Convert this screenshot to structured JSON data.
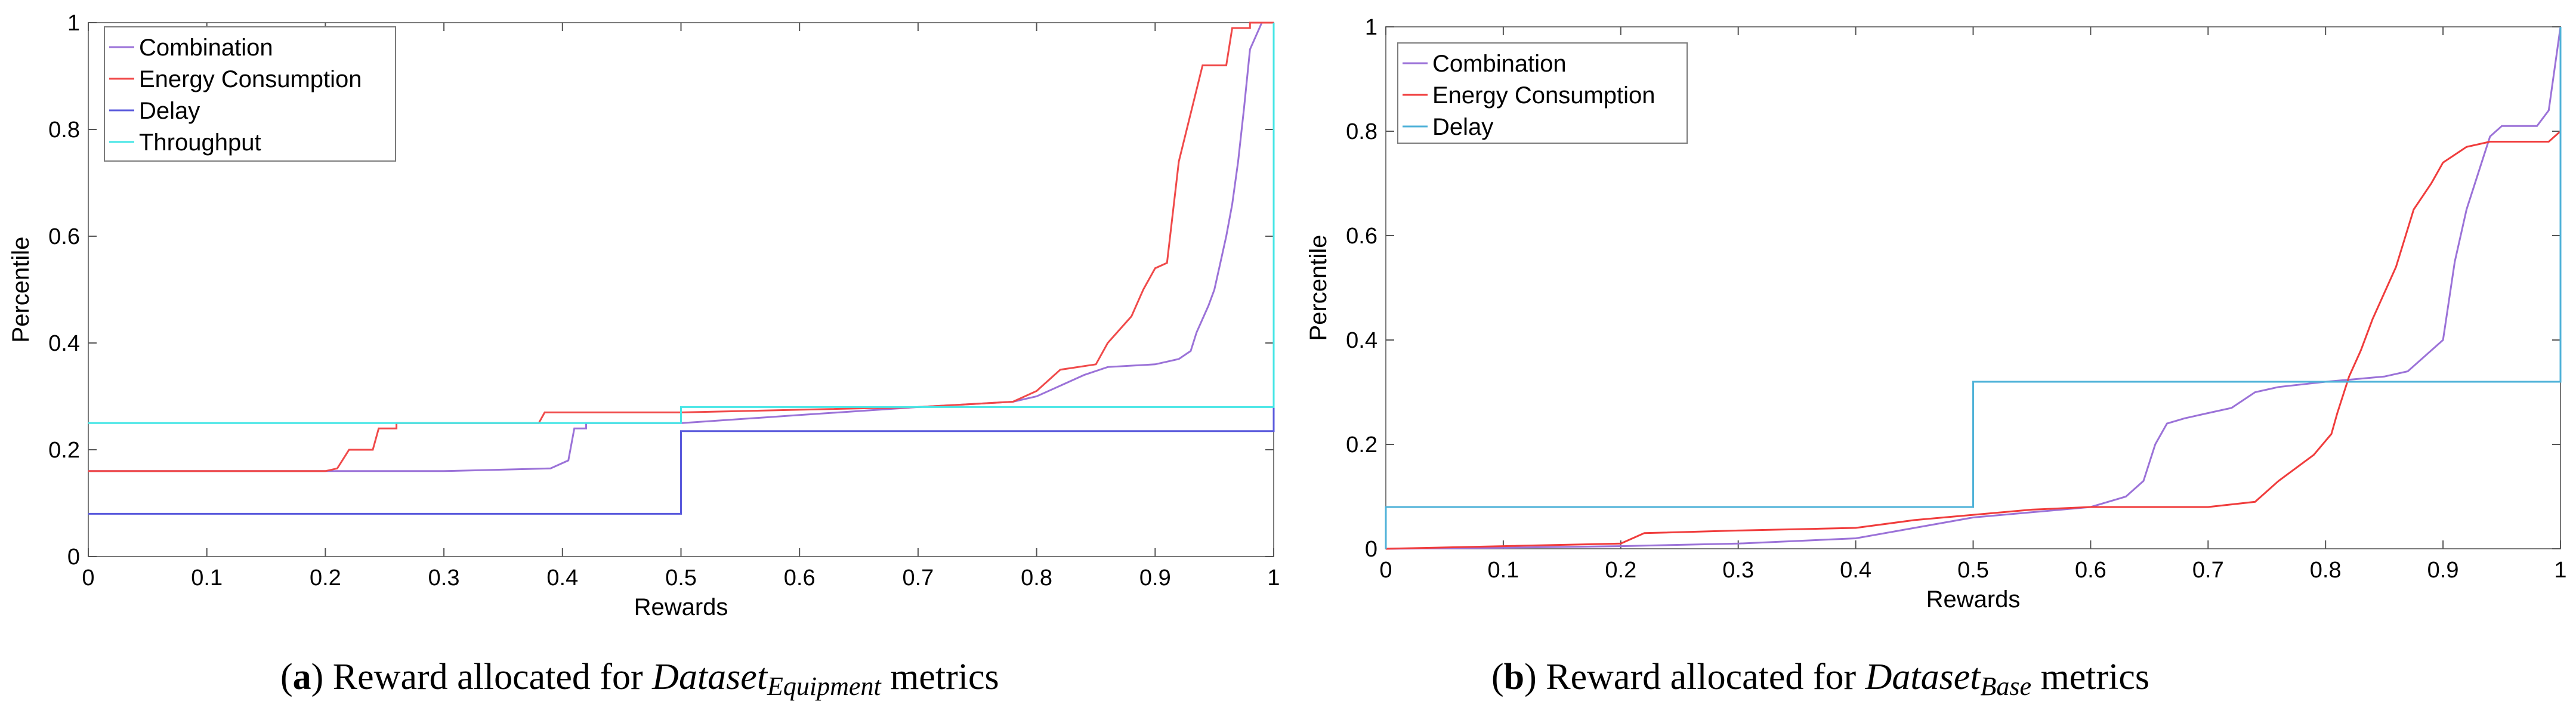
{
  "chart_data": [
    {
      "type": "line",
      "step": true,
      "xlabel": "Rewards",
      "ylabel": "Percentile",
      "xlim": [
        0,
        1
      ],
      "ylim": [
        0,
        1
      ],
      "xticks": [
        "0",
        "0.1",
        "0.2",
        "0.3",
        "0.4",
        "0.5",
        "0.6",
        "0.7",
        "0.8",
        "0.9",
        "1"
      ],
      "yticks": [
        "0",
        "0.2",
        "0.4",
        "0.6",
        "0.8",
        "1"
      ],
      "legend_position": "top-left",
      "caption": {
        "label": "(a)",
        "text": "Reward allocated for",
        "var": "Dataset",
        "sub": "Equipment",
        "suffix": "metrics"
      },
      "series": [
        {
          "name": "Combination",
          "color": "#9b72d8",
          "points": [
            [
              0,
              0.16
            ],
            [
              0.17,
              0.16
            ],
            [
              0.2,
              0.16
            ],
            [
              0.3,
              0.16
            ],
            [
              0.39,
              0.165
            ],
            [
              0.405,
              0.18
            ],
            [
              0.41,
              0.24
            ],
            [
              0.42,
              0.24
            ],
            [
              0.42,
              0.25
            ],
            [
              0.5,
              0.25
            ],
            [
              0.6,
              0.265
            ],
            [
              0.7,
              0.28
            ],
            [
              0.78,
              0.29
            ],
            [
              0.8,
              0.3
            ],
            [
              0.84,
              0.34
            ],
            [
              0.86,
              0.355
            ],
            [
              0.9,
              0.36
            ],
            [
              0.92,
              0.37
            ],
            [
              0.93,
              0.385
            ],
            [
              0.935,
              0.42
            ],
            [
              0.945,
              0.47
            ],
            [
              0.95,
              0.5
            ],
            [
              0.955,
              0.55
            ],
            [
              0.96,
              0.6
            ],
            [
              0.965,
              0.66
            ],
            [
              0.97,
              0.74
            ],
            [
              0.975,
              0.84
            ],
            [
              0.98,
              0.95
            ],
            [
              0.99,
              1.0
            ],
            [
              1.0,
              1.0
            ]
          ]
        },
        {
          "name": "Energy Consumption",
          "color": "#f04a4a",
          "points": [
            [
              0,
              0.16
            ],
            [
              0.2,
              0.16
            ],
            [
              0.21,
              0.165
            ],
            [
              0.22,
              0.2
            ],
            [
              0.24,
              0.2
            ],
            [
              0.245,
              0.24
            ],
            [
              0.26,
              0.24
            ],
            [
              0.26,
              0.25
            ],
            [
              0.38,
              0.25
            ],
            [
              0.385,
              0.27
            ],
            [
              0.5,
              0.27
            ],
            [
              0.6,
              0.275
            ],
            [
              0.7,
              0.28
            ],
            [
              0.78,
              0.29
            ],
            [
              0.8,
              0.31
            ],
            [
              0.82,
              0.35
            ],
            [
              0.85,
              0.36
            ],
            [
              0.86,
              0.4
            ],
            [
              0.88,
              0.45
            ],
            [
              0.89,
              0.5
            ],
            [
              0.9,
              0.54
            ],
            [
              0.91,
              0.55
            ],
            [
              0.92,
              0.74
            ],
            [
              0.94,
              0.92
            ],
            [
              0.96,
              0.92
            ],
            [
              0.965,
              0.99
            ],
            [
              0.98,
              0.99
            ],
            [
              0.98,
              1.0
            ],
            [
              1.0,
              1.0
            ]
          ]
        },
        {
          "name": "Delay",
          "color": "#5a5adc",
          "points": [
            [
              0,
              0.08
            ],
            [
              0.5,
              0.08
            ],
            [
              0.5,
              0.235
            ],
            [
              1.0,
              0.235
            ],
            [
              1.0,
              1.0
            ]
          ]
        },
        {
          "name": "Throughput",
          "color": "#45e6e6",
          "points": [
            [
              0,
              0.25
            ],
            [
              0.5,
              0.25
            ],
            [
              0.5,
              0.28
            ],
            [
              1.0,
              0.28
            ],
            [
              1.0,
              1.0
            ]
          ]
        }
      ]
    },
    {
      "type": "line",
      "step": true,
      "xlabel": "Rewards",
      "ylabel": "Percentile",
      "xlim": [
        0,
        1
      ],
      "ylim": [
        0,
        1
      ],
      "xticks": [
        "0",
        "0.1",
        "0.2",
        "0.3",
        "0.4",
        "0.5",
        "0.6",
        "0.7",
        "0.8",
        "0.9",
        "1"
      ],
      "yticks": [
        "0",
        "0.2",
        "0.4",
        "0.6",
        "0.8",
        "1"
      ],
      "legend_position": "top-left",
      "caption": {
        "label": "(b)",
        "text": "Reward allocated for",
        "var": "Dataset",
        "sub": "Base",
        "suffix": "metrics"
      },
      "series": [
        {
          "name": "Combination",
          "color": "#9b72d8",
          "points": [
            [
              0,
              0.0
            ],
            [
              0.1,
              0.002
            ],
            [
              0.2,
              0.005
            ],
            [
              0.3,
              0.01
            ],
            [
              0.4,
              0.02
            ],
            [
              0.45,
              0.04
            ],
            [
              0.5,
              0.06
            ],
            [
              0.55,
              0.07
            ],
            [
              0.6,
              0.08
            ],
            [
              0.63,
              0.1
            ],
            [
              0.645,
              0.13
            ],
            [
              0.655,
              0.2
            ],
            [
              0.665,
              0.24
            ],
            [
              0.68,
              0.25
            ],
            [
              0.7,
              0.26
            ],
            [
              0.72,
              0.27
            ],
            [
              0.74,
              0.3
            ],
            [
              0.76,
              0.31
            ],
            [
              0.8,
              0.32
            ],
            [
              0.85,
              0.33
            ],
            [
              0.87,
              0.34
            ],
            [
              0.9,
              0.4
            ],
            [
              0.91,
              0.55
            ],
            [
              0.92,
              0.65
            ],
            [
              0.93,
              0.72
            ],
            [
              0.94,
              0.79
            ],
            [
              0.95,
              0.81
            ],
            [
              0.98,
              0.81
            ],
            [
              0.99,
              0.84
            ],
            [
              1.0,
              1.0
            ]
          ]
        },
        {
          "name": "Energy Consumption",
          "color": "#f03c3c",
          "points": [
            [
              0,
              0.0
            ],
            [
              0.1,
              0.005
            ],
            [
              0.2,
              0.01
            ],
            [
              0.22,
              0.03
            ],
            [
              0.3,
              0.035
            ],
            [
              0.4,
              0.04
            ],
            [
              0.45,
              0.055
            ],
            [
              0.5,
              0.065
            ],
            [
              0.55,
              0.075
            ],
            [
              0.6,
              0.08
            ],
            [
              0.7,
              0.08
            ],
            [
              0.74,
              0.09
            ],
            [
              0.76,
              0.13
            ],
            [
              0.79,
              0.18
            ],
            [
              0.805,
              0.22
            ],
            [
              0.81,
              0.26
            ],
            [
              0.82,
              0.33
            ],
            [
              0.83,
              0.38
            ],
            [
              0.84,
              0.44
            ],
            [
              0.86,
              0.54
            ],
            [
              0.875,
              0.65
            ],
            [
              0.89,
              0.7
            ],
            [
              0.9,
              0.74
            ],
            [
              0.92,
              0.77
            ],
            [
              0.94,
              0.78
            ],
            [
              0.99,
              0.78
            ],
            [
              1.0,
              0.8
            ],
            [
              1.0,
              0.95
            ]
          ]
        },
        {
          "name": "Delay",
          "color": "#4fb2d8",
          "points": [
            [
              0,
              0.0
            ],
            [
              0,
              0.08
            ],
            [
              0.5,
              0.08
            ],
            [
              0.5,
              0.32
            ],
            [
              1.0,
              0.32
            ],
            [
              1.0,
              1.0
            ]
          ]
        }
      ]
    }
  ]
}
